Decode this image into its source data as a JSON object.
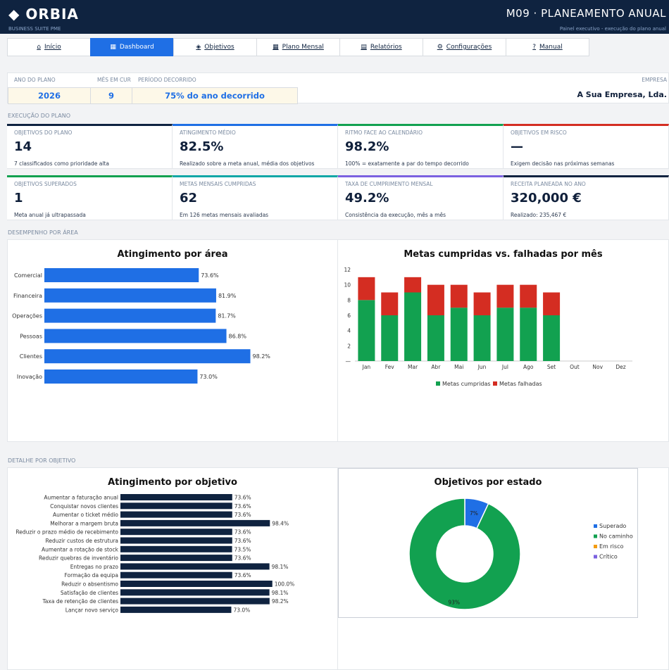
{
  "header": {
    "logo": "◆  ORBIA",
    "logo_sub": "BUSINESS SUITE PME",
    "title": "M09  ·  PLANEAMENTO ANUAL",
    "subtitle": "Painel executivo - execução do plano anual"
  },
  "tabs": [
    {
      "icon": "⌂",
      "label": "Início",
      "active": false
    },
    {
      "icon": "▦",
      "label": "Dashboard",
      "active": true
    },
    {
      "icon": "◈",
      "label": "Objetivos",
      "active": false
    },
    {
      "icon": "▦",
      "label": "Plano Mensal",
      "active": false
    },
    {
      "icon": "▤",
      "label": "Relatórios",
      "active": false
    },
    {
      "icon": "⚙",
      "label": "Configurações",
      "active": false
    },
    {
      "icon": "?",
      "label": "Manual",
      "active": false
    }
  ],
  "info": {
    "year_label": "ANO DO PLANO",
    "year": "2026",
    "month_label": "MÊS EM CUR",
    "month": "9",
    "period_label": "PERÍODO DECORRIDO",
    "period": "75% do ano decorrido",
    "company_label": "EMPRESA",
    "company": "A Sua Empresa, Lda."
  },
  "sections": {
    "exec": "EXECUÇÃO DO PLANO",
    "area": "DESEMPENHO POR ÁREA",
    "detail": "DETALHE POR OBJETIVO"
  },
  "kpis": [
    {
      "label": "OBJETIVOS DO PLANO",
      "value": "14",
      "note": "7 classificados como prioridade alta",
      "color": "#0f2340"
    },
    {
      "label": "ATINGIMENTO MÉDIO",
      "value": "82.5%",
      "note": "Realizado sobre a meta anual, média dos objetivos",
      "color": "#1f6fe5"
    },
    {
      "label": "RITMO FACE AO CALENDÁRIO",
      "value": "98.2%",
      "note": "100% = exatamente a par do tempo decorrido",
      "color": "#12a150"
    },
    {
      "label": "OBJETIVOS EM RISCO",
      "value": "—",
      "note": "Exigem decisão nas próximas semanas",
      "color": "#d42d22"
    },
    {
      "label": "OBJETIVOS SUPERADOS",
      "value": "1",
      "note": "Meta anual já ultrapassada",
      "color": "#12a150"
    },
    {
      "label": "METAS MENSAIS CUMPRIDAS",
      "value": "62",
      "note": "Em 126 metas mensais avaliadas",
      "color": "#10a7a7"
    },
    {
      "label": "TAXA DE CUMPRIMENTO MENSAL",
      "value": "49.2%",
      "note": "Consistência da execução, mês a mês",
      "color": "#7b61e0"
    },
    {
      "label": "RECEITA PLANEADA NO ANO",
      "value": "320,000 €",
      "note": "Realizado: 235,467 €",
      "color": "#0f2340"
    }
  ],
  "chart_data": [
    {
      "type": "bar",
      "orientation": "horizontal",
      "title": "Atingimento por área",
      "categories": [
        "Comercial",
        "Financeira",
        "Operações",
        "Pessoas",
        "Clientes",
        "Inovação"
      ],
      "values": [
        73.6,
        81.9,
        81.7,
        86.8,
        98.2,
        73.0
      ],
      "labels": [
        "73.6%",
        "81.9%",
        "81.7%",
        "86.8%",
        "98.2%",
        "73.0%"
      ],
      "color": "#1f6fe5",
      "xlim": [
        0,
        140
      ]
    },
    {
      "type": "bar",
      "stacked": true,
      "title": "Metas cumpridas vs. falhadas por mês",
      "categories": [
        "Jan",
        "Fev",
        "Mar",
        "Abr",
        "Mai",
        "Jun",
        "Jul",
        "Ago",
        "Set",
        "Out",
        "Nov",
        "Dez"
      ],
      "series": [
        {
          "name": "Metas cumpridas",
          "values": [
            8,
            6,
            9,
            6,
            7,
            6,
            7,
            7,
            6,
            0,
            0,
            0
          ],
          "color": "#12a150"
        },
        {
          "name": "Metas falhadas",
          "values": [
            3,
            3,
            2,
            4,
            3,
            3,
            3,
            3,
            3,
            0,
            0,
            0
          ],
          "color": "#d42d22"
        }
      ],
      "yticks": [
        "—",
        "2",
        "4",
        "6",
        "8",
        "10",
        "12"
      ],
      "ylim": [
        0,
        12
      ],
      "legend": "bottom"
    },
    {
      "type": "bar",
      "orientation": "horizontal",
      "title": "Atingimento por objetivo",
      "categories": [
        "Aumentar a faturação anual",
        "Conquistar novos clientes",
        "Aumentar o ticket médio",
        "Melhorar a margem bruta",
        "Reduzir o prazo médio de recebimento",
        "Reduzir custos de estrutura",
        "Aumentar a rotação de stock",
        "Reduzir quebras de inventário",
        "Entregas no prazo",
        "Formação da equipa",
        "Reduzir o absentismo",
        "Satisfação de clientes",
        "Taxa de retenção de clientes",
        "Lançar novo serviço"
      ],
      "values": [
        73.6,
        73.6,
        73.6,
        98.4,
        73.6,
        73.6,
        73.5,
        73.6,
        98.1,
        73.6,
        100.0,
        98.1,
        98.2,
        73.0
      ],
      "labels": [
        "73.6%",
        "73.6%",
        "73.6%",
        "98.4%",
        "73.6%",
        "73.6%",
        "73.5%",
        "73.6%",
        "98.1%",
        "73.6%",
        "100.0%",
        "98.1%",
        "98.2%",
        "73.0%"
      ],
      "color": "#0f2340",
      "xlim": [
        0,
        140
      ]
    },
    {
      "type": "pie",
      "donut": true,
      "title": "Objetivos por estado",
      "categories": [
        "Superado",
        "No caminho",
        "Em risco",
        "Crítico"
      ],
      "values": [
        7,
        93,
        0,
        0
      ],
      "labels": [
        "7%",
        "93%"
      ],
      "colors": [
        "#1f6fe5",
        "#12a150",
        "#f39c12",
        "#7b61e0"
      ],
      "legend": "right"
    }
  ]
}
